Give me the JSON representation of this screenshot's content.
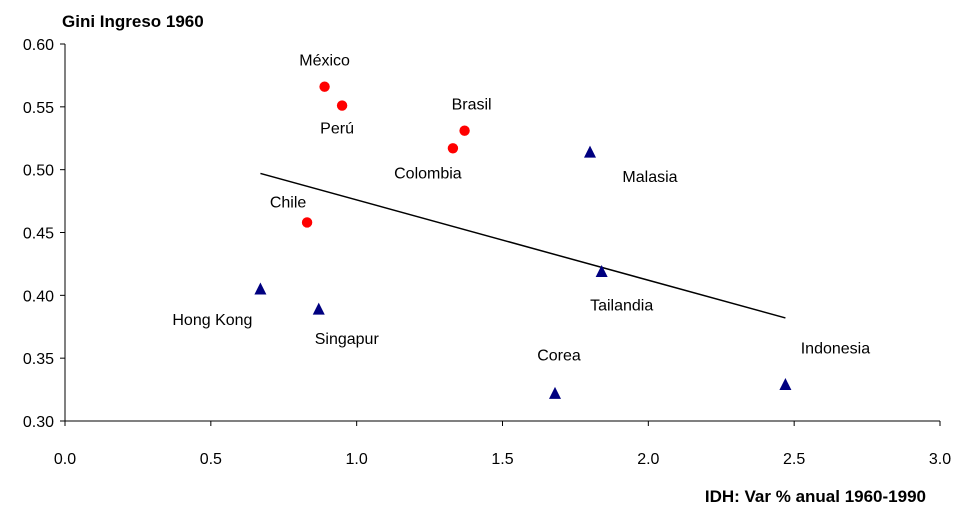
{
  "chart_data": {
    "type": "scatter",
    "title": "",
    "ylabel": "Gini Ingreso 1960",
    "xlabel": "IDH: Var % anual 1960-1990",
    "xlim": [
      0.0,
      3.0
    ],
    "ylim": [
      0.3,
      0.6
    ],
    "x_ticks": [
      "0.0",
      "0.5",
      "1.0",
      "1.5",
      "2.0",
      "2.5",
      "3.0"
    ],
    "y_ticks": [
      "0.30",
      "0.35",
      "0.40",
      "0.45",
      "0.50",
      "0.55",
      "0.60"
    ],
    "grid": false,
    "series": [
      {
        "marker": "circle",
        "color": "#ff0000",
        "points": [
          {
            "label": "México",
            "x": 0.89,
            "y": 0.566
          },
          {
            "label": "Perú",
            "x": 0.95,
            "y": 0.551
          },
          {
            "label": "Brasil",
            "x": 1.37,
            "y": 0.531
          },
          {
            "label": "Colombia",
            "x": 1.33,
            "y": 0.517
          },
          {
            "label": "Chile",
            "x": 0.83,
            "y": 0.458
          }
        ]
      },
      {
        "marker": "triangle",
        "color": "#000080",
        "points": [
          {
            "label": "Malasia",
            "x": 1.8,
            "y": 0.514
          },
          {
            "label": "Tailandia",
            "x": 1.84,
            "y": 0.419
          },
          {
            "label": "Hong Kong",
            "x": 0.67,
            "y": 0.405
          },
          {
            "label": "Singapur",
            "x": 0.87,
            "y": 0.389
          },
          {
            "label": "Corea",
            "x": 1.68,
            "y": 0.322
          },
          {
            "label": "Indonesia",
            "x": 2.47,
            "y": 0.329
          }
        ]
      }
    ],
    "trendline": {
      "color": "#000000",
      "points": [
        {
          "x": 0.67,
          "y": 0.497
        },
        {
          "x": 2.47,
          "y": 0.382
        }
      ]
    }
  }
}
